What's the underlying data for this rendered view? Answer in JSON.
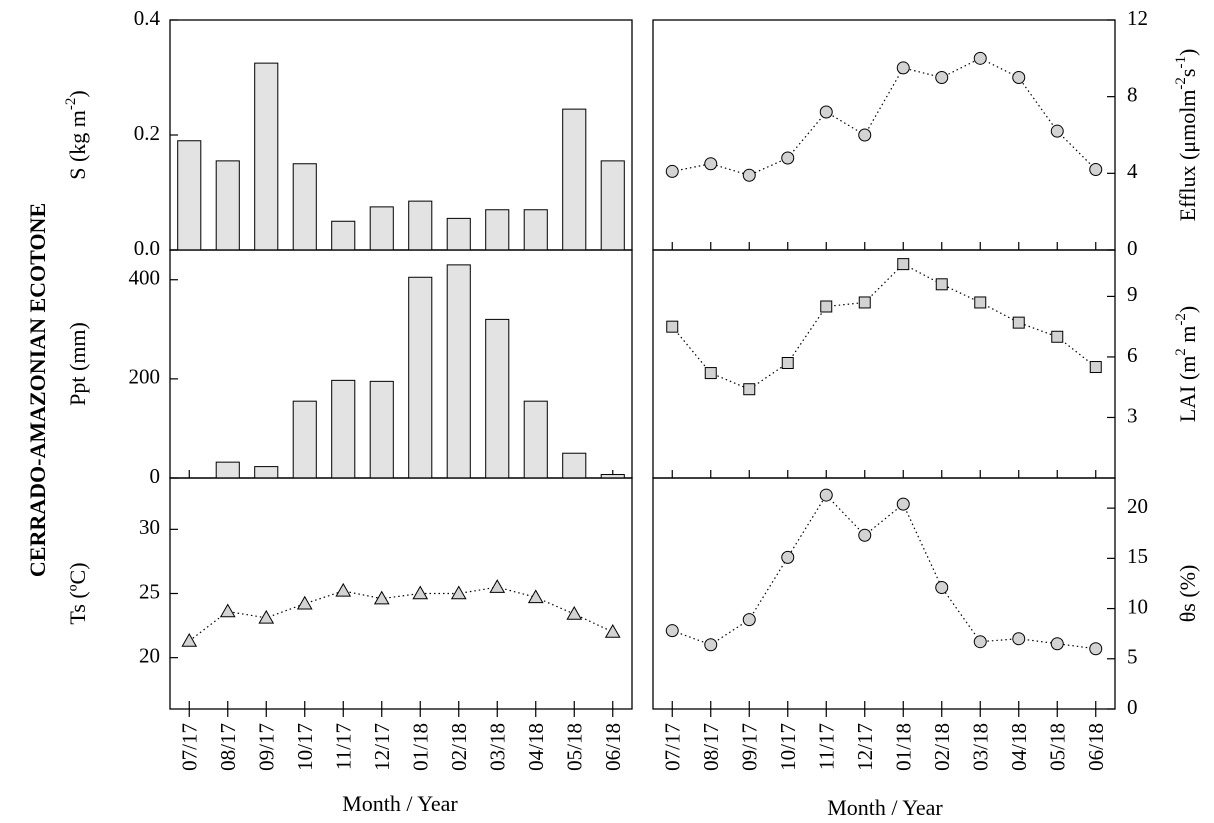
{
  "figure": {
    "side_label": "CERRADO-AMAZONIAN ECOTONE",
    "xlabel_left": "Month / Year",
    "xlabel_right": "Month / Year"
  },
  "colors": {
    "marker_fill": "#d3d3d3",
    "bar_fill": "#e3e3e3",
    "stroke": "#000000"
  },
  "chart_data": [
    {
      "id": "S",
      "type": "bar",
      "panel": "left-top",
      "categories": [
        "07/17",
        "08/17",
        "09/17",
        "10/17",
        "11/17",
        "12/17",
        "01/18",
        "02/18",
        "03/18",
        "04/18",
        "05/18",
        "06/18"
      ],
      "values": [
        0.19,
        0.155,
        0.325,
        0.15,
        0.05,
        0.075,
        0.085,
        0.055,
        0.07,
        0.07,
        0.245,
        0.155
      ],
      "ylabel_parts": [
        "S (kg m",
        "-2",
        ")"
      ],
      "ylim": [
        0,
        0.4
      ],
      "yticks": [
        0.0,
        0.2,
        0.4
      ],
      "ytick_labels": [
        "0.0",
        "0.2",
        "0.4"
      ]
    },
    {
      "id": "Ppt",
      "type": "bar",
      "panel": "left-middle",
      "categories": [
        "07/17",
        "08/17",
        "09/17",
        "10/17",
        "11/17",
        "12/17",
        "01/18",
        "02/18",
        "03/18",
        "04/18",
        "05/18",
        "06/18"
      ],
      "values": [
        0,
        32,
        23,
        155,
        197,
        195,
        405,
        430,
        320,
        155,
        50,
        7
      ],
      "ylabel_parts": [
        "Ppt (mm)"
      ],
      "ylim": [
        0,
        460
      ],
      "yticks": [
        0,
        200,
        400
      ],
      "ytick_labels": [
        "0",
        "200",
        "400"
      ]
    },
    {
      "id": "Ts",
      "type": "line",
      "marker": "triangle",
      "panel": "left-bottom",
      "categories": [
        "07/17",
        "08/17",
        "09/17",
        "10/17",
        "11/17",
        "12/17",
        "01/18",
        "02/18",
        "03/18",
        "04/18",
        "05/18",
        "06/18"
      ],
      "values": [
        21.3,
        23.6,
        23.1,
        24.2,
        25.2,
        24.6,
        25.0,
        25.0,
        25.5,
        24.7,
        23.4,
        22.0
      ],
      "ylabel_parts": [
        "Ts (ºC)"
      ],
      "ylim": [
        16,
        34
      ],
      "yticks": [
        20,
        25,
        30
      ],
      "ytick_labels": [
        "20",
        "25",
        "30"
      ]
    },
    {
      "id": "Efflux",
      "type": "line",
      "marker": "circle",
      "panel": "right-top",
      "categories": [
        "07/17",
        "08/17",
        "09/17",
        "10/17",
        "11/17",
        "12/17",
        "01/18",
        "02/18",
        "03/18",
        "04/18",
        "05/18",
        "06/18"
      ],
      "values": [
        4.1,
        4.5,
        3.9,
        4.8,
        7.2,
        6.0,
        9.5,
        9.0,
        10.0,
        9.0,
        6.2,
        4.2
      ],
      "ylabel_parts": [
        "Efflux (μmolm",
        "-2",
        "s",
        "-1",
        ")"
      ],
      "ylim": [
        0,
        12
      ],
      "yticks": [
        0,
        4,
        8,
        12
      ],
      "ytick_labels": [
        "0",
        "4",
        "8",
        "12"
      ]
    },
    {
      "id": "LAI",
      "type": "line",
      "marker": "square",
      "panel": "right-middle",
      "categories": [
        "07/17",
        "08/17",
        "09/17",
        "10/17",
        "11/17",
        "12/17",
        "01/18",
        "02/18",
        "03/18",
        "04/18",
        "05/18",
        "06/18"
      ],
      "values": [
        7.5,
        5.2,
        4.4,
        5.7,
        8.5,
        8.7,
        10.6,
        9.6,
        8.7,
        7.7,
        7.0,
        5.5
      ],
      "ylabel_parts": [
        "LAI (m",
        "2",
        " m",
        "-2",
        ")"
      ],
      "ylim": [
        0,
        11.3
      ],
      "yticks": [
        3,
        6,
        9
      ],
      "ytick_labels": [
        "3",
        "6",
        "9"
      ]
    },
    {
      "id": "theta_s",
      "type": "line",
      "marker": "circle",
      "panel": "right-bottom",
      "categories": [
        "07/17",
        "08/17",
        "09/17",
        "10/17",
        "11/17",
        "12/17",
        "01/18",
        "02/18",
        "03/18",
        "04/18",
        "05/18",
        "06/18"
      ],
      "values": [
        7.8,
        6.4,
        8.9,
        15.1,
        21.3,
        17.3,
        20.4,
        12.1,
        6.7,
        7.0,
        6.5,
        6.0
      ],
      "ylabel_parts": [
        "θs (%)"
      ],
      "ylim": [
        0,
        23
      ],
      "yticks": [
        0,
        5,
        10,
        15,
        20
      ],
      "ytick_labels": [
        "0",
        "5",
        "10",
        "15",
        "20"
      ]
    }
  ]
}
